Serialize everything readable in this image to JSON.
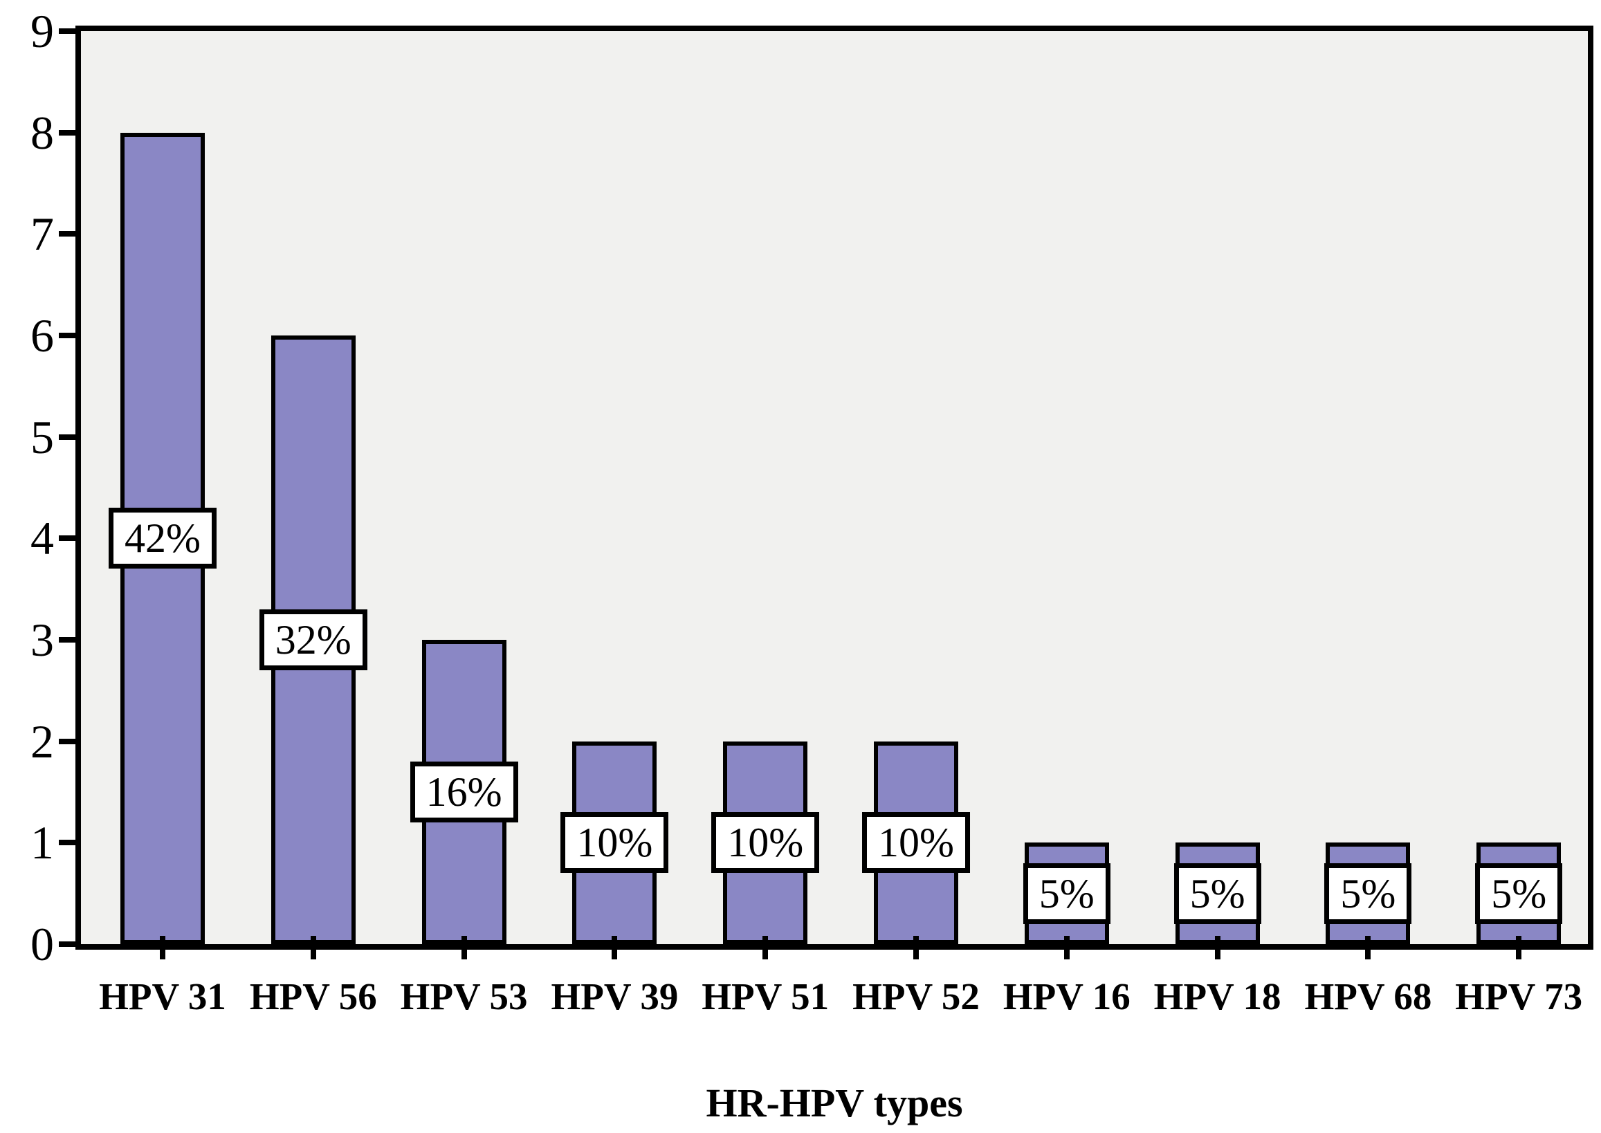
{
  "chart_data": {
    "type": "bar",
    "title": "",
    "xlabel": "HR-HPV types",
    "ylabel": "",
    "categories": [
      "HPV 31",
      "HPV 56",
      "HPV 53",
      "HPV 39",
      "HPV 51",
      "HPV 52",
      "HPV 16",
      "HPV 18",
      "HPV 68",
      "HPV 73"
    ],
    "values": [
      8,
      6,
      3,
      2,
      2,
      2,
      1,
      1,
      1,
      1
    ],
    "bar_labels": [
      "42%",
      "32%",
      "16%",
      "10%",
      "10%",
      "10%",
      "5%",
      "5%",
      "5%",
      "5%"
    ],
    "ylim": [
      0,
      9
    ],
    "yticks": [
      0,
      1,
      2,
      3,
      4,
      5,
      6,
      7,
      8,
      9
    ],
    "grid": "off",
    "legend": "none",
    "colors": {
      "bar_fill": "#8a87c5",
      "bar_border": "#000000",
      "plot_background": "#f1f1ef",
      "frame": "#000000",
      "label_box_background": "#ffffff",
      "label_box_border": "#000000",
      "text": "#000000"
    }
  }
}
